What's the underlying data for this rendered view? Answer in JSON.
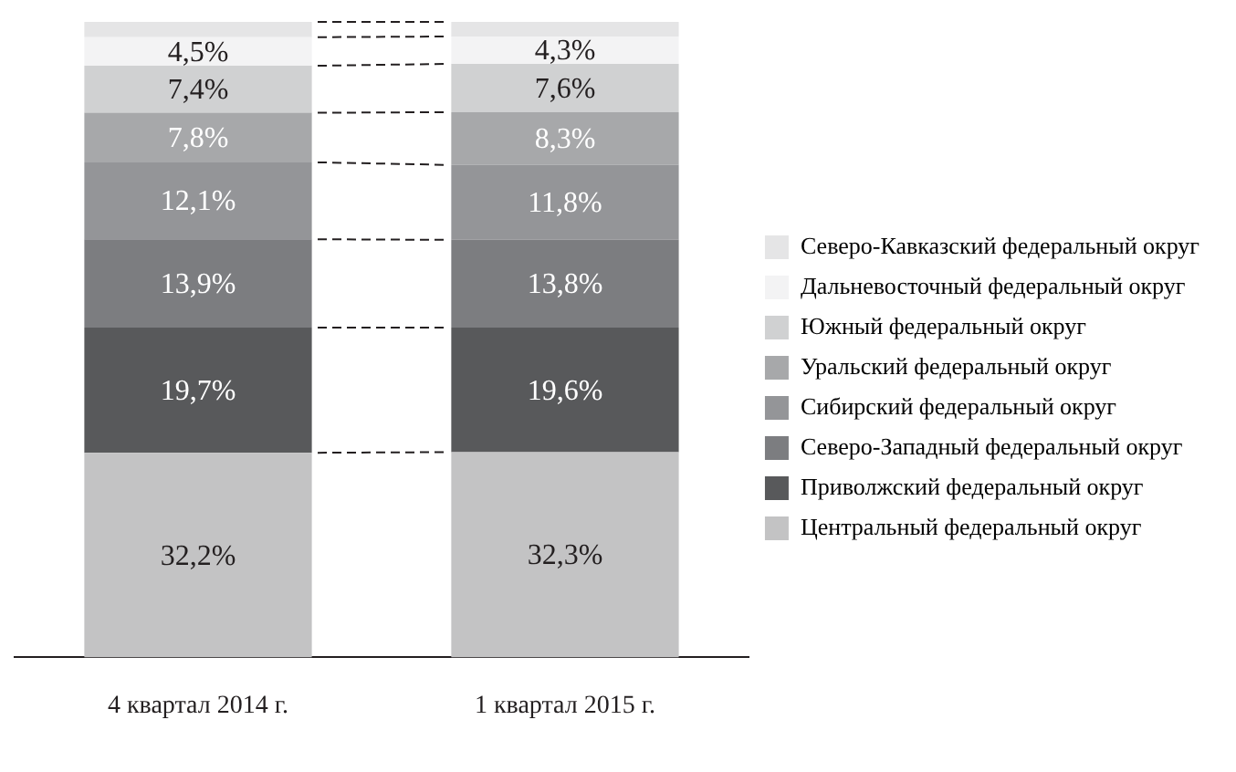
{
  "chart_data": {
    "type": "bar",
    "stacked": true,
    "categories": [
      "4 квартал 2014 г.",
      "1 квартал 2015 г."
    ],
    "legend": "right",
    "grid": false,
    "series": [
      {
        "name": "Центральный федеральный округ",
        "color": "#c3c3c4",
        "values": [
          32.2,
          32.3
        ],
        "value_labels": [
          "32,2%",
          "32,3%"
        ]
      },
      {
        "name": "Приволжский федеральный округ",
        "color": "#58595b",
        "values": [
          19.7,
          19.6
        ],
        "value_labels": [
          "19,7%",
          "19,6%"
        ]
      },
      {
        "name": "Северо-Западный федеральный округ",
        "color": "#7c7d80",
        "values": [
          13.9,
          13.8
        ],
        "value_labels": [
          "13,9%",
          "13,8%"
        ]
      },
      {
        "name": "Сибирский федеральный округ",
        "color": "#949598",
        "values": [
          12.1,
          11.8
        ],
        "value_labels": [
          "12,1%",
          "11,8%"
        ]
      },
      {
        "name": "Уральский федеральный округ",
        "color": "#a7a8aa",
        "values": [
          7.8,
          8.3
        ],
        "value_labels": [
          "7,8%",
          "8,3%"
        ]
      },
      {
        "name": "Южный федеральный округ",
        "color": "#d0d1d2",
        "values": [
          7.4,
          7.6
        ],
        "value_labels": [
          "7,4%",
          "7,6%"
        ]
      },
      {
        "name": "Дальневосточный федеральный округ",
        "color": "#f3f3f4",
        "values": [
          4.5,
          4.3
        ],
        "value_labels": [
          "4,5%",
          "4,3%"
        ]
      },
      {
        "name": "Северо-Кавказский федеральный округ",
        "color": "#e5e5e6",
        "values": [
          2.4,
          2.3
        ],
        "value_labels": [
          null,
          null
        ]
      }
    ]
  }
}
